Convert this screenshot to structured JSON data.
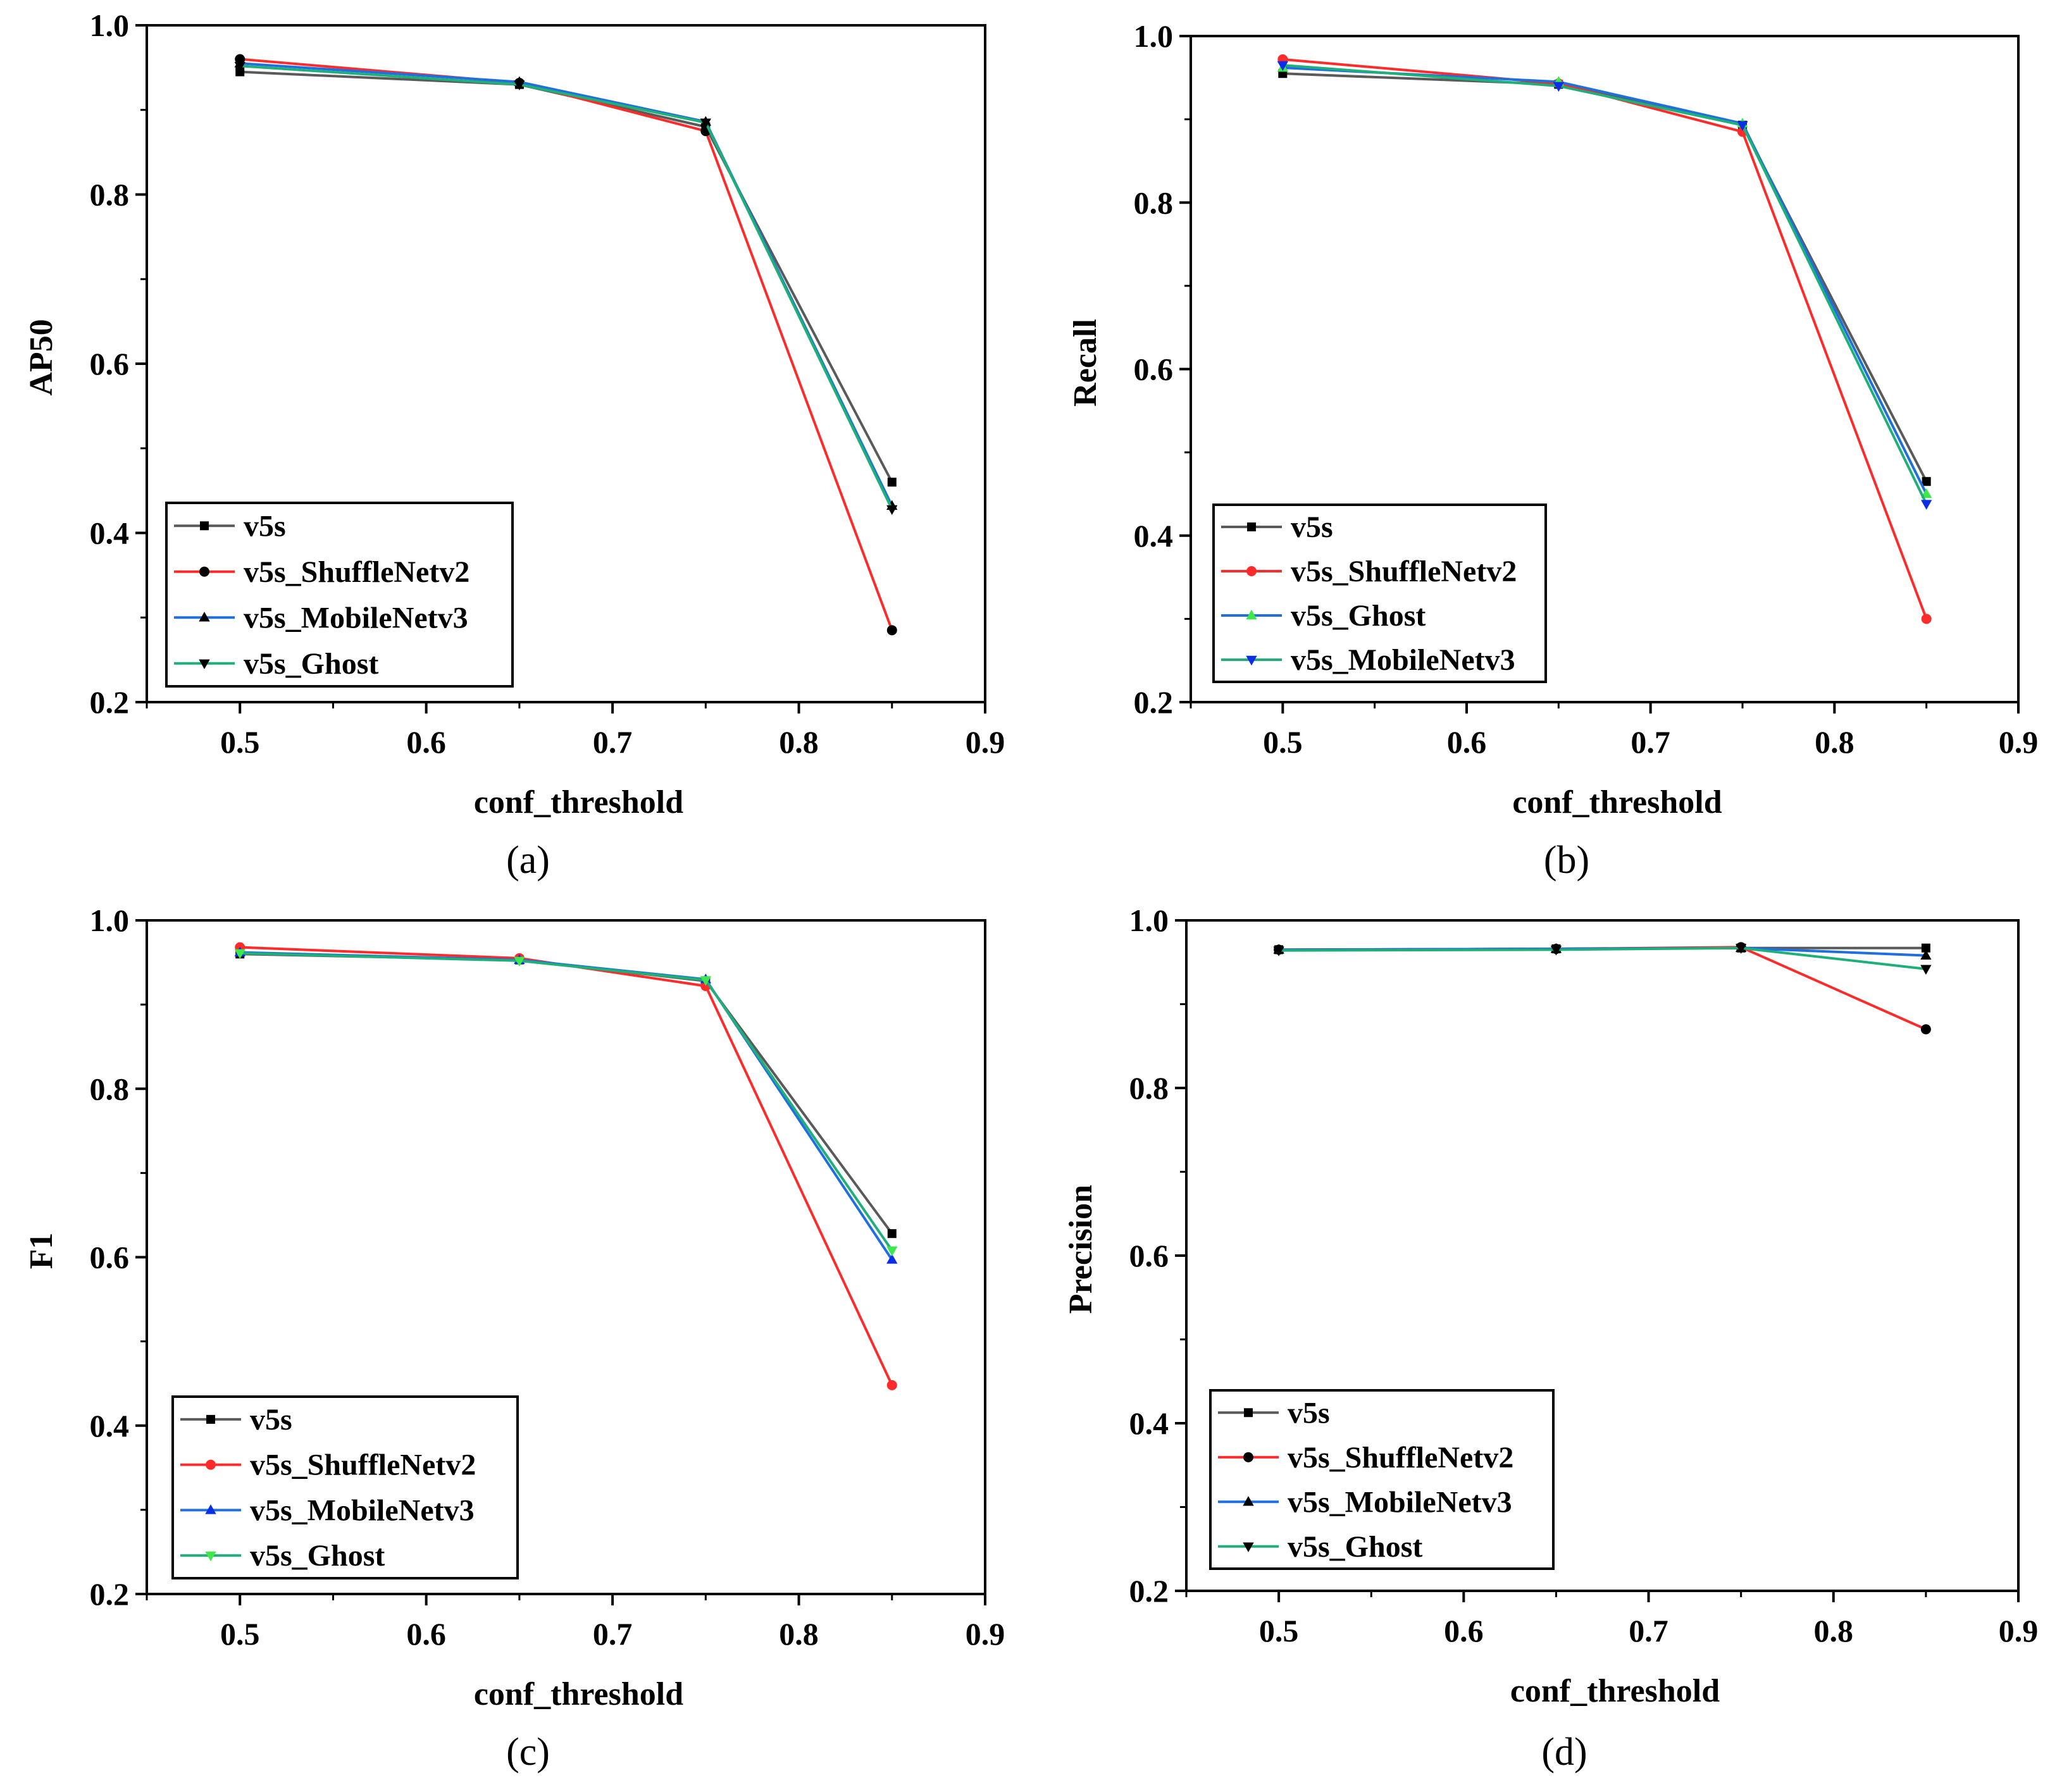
{
  "figure": {
    "colors": {
      "v5s": "#5a5a5a",
      "v5s_ShuffleNetv2": "#ff2a2a",
      "v5s_MobileNetv3": "#1f6fe0",
      "v5s_Ghost": "#1fb07a",
      "ghost_marker_bright": "#3ee84a",
      "mobilenet_marker_bright": "#0a2ee8",
      "marker_dark": "#000000"
    }
  },
  "chart_data": [
    {
      "id": "a",
      "type": "line",
      "caption": "(a)",
      "xlabel": "conf_threshold",
      "ylabel": "AP50",
      "xlim": [
        0.45,
        0.9
      ],
      "ylim": [
        0.2,
        1.0
      ],
      "xticks": [
        "0.5",
        "0.6",
        "0.7",
        "0.8",
        "0.9"
      ],
      "yticks": [
        "0.2",
        "0.4",
        "0.6",
        "0.8",
        "1.0"
      ],
      "x": [
        0.5,
        0.65,
        0.75,
        0.85
      ],
      "legend_position": "bottom-left",
      "series": [
        {
          "name": "v5s",
          "color_key": "v5s",
          "marker": "square",
          "marker_color_key": "marker_dark",
          "values": [
            0.945,
            0.93,
            0.88,
            0.46
          ]
        },
        {
          "name": "v5s_ShuffleNetv2",
          "color_key": "v5s_ShuffleNetv2",
          "marker": "circle",
          "marker_color_key": "marker_dark",
          "values": [
            0.96,
            0.932,
            0.875,
            0.285
          ]
        },
        {
          "name": "v5s_MobileNetv3",
          "color_key": "v5s_MobileNetv3",
          "marker": "triangle-up",
          "marker_color_key": "marker_dark",
          "values": [
            0.955,
            0.933,
            0.886,
            0.432
          ]
        },
        {
          "name": "v5s_Ghost",
          "color_key": "v5s_Ghost",
          "marker": "triangle-down",
          "marker_color_key": "marker_dark",
          "values": [
            0.952,
            0.93,
            0.885,
            0.428
          ]
        }
      ]
    },
    {
      "id": "b",
      "type": "line",
      "caption": "(b)",
      "xlabel": "conf_threshold",
      "ylabel": "Recall",
      "xlim": [
        0.45,
        0.9
      ],
      "ylim": [
        0.2,
        1.0
      ],
      "xticks": [
        "0.5",
        "0.6",
        "0.7",
        "0.8",
        "0.9"
      ],
      "yticks": [
        "0.2",
        "0.4",
        "0.6",
        "0.8",
        "1.0"
      ],
      "x": [
        0.5,
        0.65,
        0.75,
        0.85
      ],
      "legend_position": "bottom-left",
      "series": [
        {
          "name": "v5s",
          "color_key": "v5s",
          "marker": "square",
          "marker_color_key": "marker_dark",
          "values": [
            0.955,
            0.942,
            0.893,
            0.465
          ]
        },
        {
          "name": "v5s_ShuffleNetv2",
          "color_key": "v5s_ShuffleNetv2",
          "marker": "circle",
          "marker_color_key": "v5s_ShuffleNetv2",
          "values": [
            0.972,
            0.943,
            0.885,
            0.3
          ]
        },
        {
          "name": "v5s_Ghost",
          "color_key": "v5s_MobileNetv3",
          "marker": "triangle-up",
          "marker_color_key": "ghost_marker_bright",
          "values": [
            0.962,
            0.945,
            0.895,
            0.45
          ]
        },
        {
          "name": "v5s_MobileNetv3",
          "color_key": "v5s_Ghost",
          "marker": "triangle-down",
          "marker_color_key": "mobilenet_marker_bright",
          "values": [
            0.965,
            0.94,
            0.893,
            0.438
          ]
        }
      ]
    },
    {
      "id": "c",
      "type": "line",
      "caption": "(c)",
      "xlabel": "conf_threshold",
      "ylabel": "F1",
      "xlim": [
        0.45,
        0.9
      ],
      "ylim": [
        0.2,
        1.0
      ],
      "xticks": [
        "0.5",
        "0.6",
        "0.7",
        "0.8",
        "0.9"
      ],
      "yticks": [
        "0.2",
        "0.4",
        "0.6",
        "0.8",
        "1.0"
      ],
      "x": [
        0.5,
        0.65,
        0.75,
        0.85
      ],
      "legend_position": "bottom-left",
      "series": [
        {
          "name": "v5s",
          "color_key": "v5s",
          "marker": "square",
          "marker_color_key": "marker_dark",
          "values": [
            0.96,
            0.953,
            0.928,
            0.628
          ]
        },
        {
          "name": "v5s_ShuffleNetv2",
          "color_key": "v5s_ShuffleNetv2",
          "marker": "circle",
          "marker_color_key": "v5s_ShuffleNetv2",
          "values": [
            0.968,
            0.955,
            0.922,
            0.448
          ]
        },
        {
          "name": "v5s_MobileNetv3",
          "color_key": "v5s_MobileNetv3",
          "marker": "triangle-up",
          "marker_color_key": "mobilenet_marker_bright",
          "values": [
            0.962,
            0.953,
            0.93,
            0.597
          ]
        },
        {
          "name": "v5s_Ghost",
          "color_key": "v5s_Ghost",
          "marker": "triangle-down",
          "marker_color_key": "ghost_marker_bright",
          "values": [
            0.961,
            0.952,
            0.929,
            0.608
          ]
        }
      ]
    },
    {
      "id": "d",
      "type": "line",
      "caption": "(d)",
      "xlabel": "conf_threshold",
      "ylabel": "Precision",
      "xlim": [
        0.45,
        0.9
      ],
      "ylim": [
        0.2,
        1.0
      ],
      "xticks": [
        "0.5",
        "0.6",
        "0.7",
        "0.8",
        "0.9"
      ],
      "yticks": [
        "0.2",
        "0.4",
        "0.6",
        "0.8",
        "1.0"
      ],
      "x": [
        0.5,
        0.65,
        0.75,
        0.85
      ],
      "legend_position": "bottom-left",
      "series": [
        {
          "name": "v5s",
          "color_key": "v5s",
          "marker": "square",
          "marker_color_key": "marker_dark",
          "values": [
            0.965,
            0.966,
            0.967,
            0.967
          ]
        },
        {
          "name": "v5s_ShuffleNetv2",
          "color_key": "v5s_ShuffleNetv2",
          "marker": "circle",
          "marker_color_key": "marker_dark",
          "values": [
            0.965,
            0.966,
            0.968,
            0.87
          ]
        },
        {
          "name": "v5s_MobileNetv3",
          "color_key": "v5s_MobileNetv3",
          "marker": "triangle-up",
          "marker_color_key": "marker_dark",
          "values": [
            0.965,
            0.966,
            0.967,
            0.958
          ]
        },
        {
          "name": "v5s_Ghost",
          "color_key": "v5s_Ghost",
          "marker": "triangle-down",
          "marker_color_key": "marker_dark",
          "values": [
            0.964,
            0.965,
            0.967,
            0.942
          ]
        }
      ]
    }
  ]
}
